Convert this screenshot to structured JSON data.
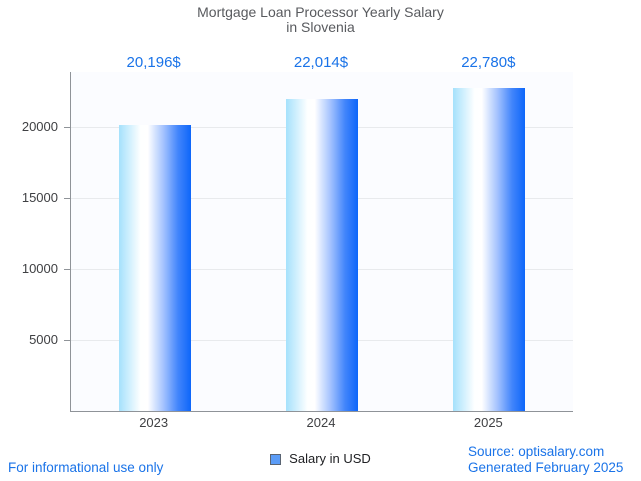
{
  "title": {
    "line1": "Mortgage Loan Processor Yearly Salary",
    "line2": "in Slovenia"
  },
  "legend": {
    "label": "Salary in USD"
  },
  "footer": {
    "left": "For informational use only",
    "source": "Source: optisalary.com",
    "generated": "Generated February 2025"
  },
  "colors": {
    "accent_blue_text": "#1a73e8",
    "title_gray": "#585a5e",
    "axis_label_gray": "#3f4043",
    "axis_line": "#8f9398",
    "gridline": "#e8eaed",
    "plot_background": "#fbfcff",
    "legend_swatch_fill": "#5b9cf7",
    "legend_swatch_border": "#5a6472",
    "bar_gradient_stops": [
      "#a5e1fc 0%",
      "#feffff 30%",
      "#ffffff 40%",
      "#a3c2fe 62%",
      "#4285fb 82%",
      "#0d66fa 100%"
    ]
  },
  "chart_data": {
    "type": "bar",
    "title": "Mortgage Loan Processor Yearly Salary in Slovenia",
    "categories": [
      "2023",
      "2024",
      "2025"
    ],
    "series": [
      {
        "name": "Salary in USD",
        "values": [
          20196,
          22014,
          22780
        ]
      }
    ],
    "value_labels": [
      "20,196$",
      "22,014$",
      "22,780$"
    ],
    "xlabel": "",
    "ylabel": "",
    "y_ticks": [
      {
        "value": 5000,
        "label": "5000"
      },
      {
        "value": 10000,
        "label": "10000"
      },
      {
        "value": 15000,
        "label": "15000"
      },
      {
        "value": 20000,
        "label": "20000"
      }
    ],
    "ylim": [
      0,
      23915
    ],
    "grid": true,
    "legend_position": "bottom"
  }
}
